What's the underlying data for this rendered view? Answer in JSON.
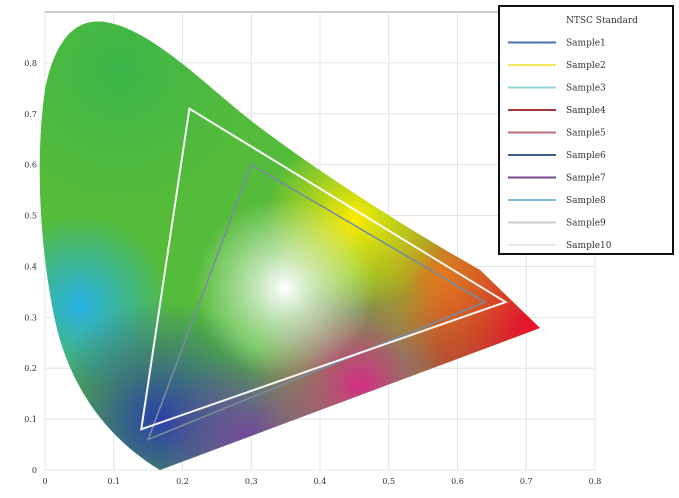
{
  "chart_data": {
    "type": "line",
    "title": "",
    "xlabel": "",
    "ylabel": "",
    "xlim": [
      0,
      0.8
    ],
    "ylim": [
      0,
      0.9
    ],
    "grid": true,
    "legend_position": "top-right",
    "x_ticks": [
      "0",
      "0.1",
      "0.2",
      "0.3",
      "0.4",
      "0.5",
      "0.6",
      "0.7",
      "0.8"
    ],
    "y_ticks": [
      "0",
      "0.1",
      "0.2",
      "0.3",
      "0.4",
      "0.5",
      "0.6",
      "0.7",
      "0.8"
    ],
    "background": "CIE 1931 chromaticity diagram",
    "series": [
      {
        "name": "NTSC Standard",
        "color": "#ffffff",
        "points": [
          [
            0.67,
            0.33
          ],
          [
            0.21,
            0.71
          ],
          [
            0.14,
            0.08
          ]
        ]
      },
      {
        "name": "Sample1",
        "color": "#4a6fb5",
        "points": [
          [
            0.64,
            0.33
          ],
          [
            0.3,
            0.6
          ],
          [
            0.15,
            0.06
          ]
        ]
      },
      {
        "name": "Sample2",
        "color": "#f2e85a",
        "points": [
          [
            0.64,
            0.33
          ],
          [
            0.3,
            0.6
          ],
          [
            0.15,
            0.06
          ]
        ]
      },
      {
        "name": "Sample3",
        "color": "#8fd4d6",
        "points": [
          [
            0.64,
            0.33
          ],
          [
            0.3,
            0.6
          ],
          [
            0.15,
            0.06
          ]
        ]
      },
      {
        "name": "Sample4",
        "color": "#a13a3a",
        "points": [
          [
            0.64,
            0.33
          ],
          [
            0.3,
            0.6
          ],
          [
            0.15,
            0.06
          ]
        ]
      },
      {
        "name": "Sample5",
        "color": "#c06e7a",
        "points": [
          [
            0.64,
            0.33
          ],
          [
            0.3,
            0.6
          ],
          [
            0.15,
            0.06
          ]
        ]
      },
      {
        "name": "Sample6",
        "color": "#3f5e8c",
        "points": [
          [
            0.64,
            0.33
          ],
          [
            0.3,
            0.6
          ],
          [
            0.15,
            0.06
          ]
        ]
      },
      {
        "name": "Sample7",
        "color": "#7a4a8a",
        "points": [
          [
            0.64,
            0.33
          ],
          [
            0.3,
            0.6
          ],
          [
            0.15,
            0.06
          ]
        ]
      },
      {
        "name": "Sample8",
        "color": "#7fb8e0",
        "points": [
          [
            0.64,
            0.33
          ],
          [
            0.3,
            0.6
          ],
          [
            0.15,
            0.06
          ]
        ]
      },
      {
        "name": "Sample9",
        "color": "#cccccc",
        "points": [
          [
            0.64,
            0.33
          ],
          [
            0.3,
            0.6
          ],
          [
            0.15,
            0.06
          ]
        ]
      },
      {
        "name": "Sample10",
        "color": "#e8e8e8",
        "points": [
          [
            0.64,
            0.33
          ],
          [
            0.3,
            0.6
          ],
          [
            0.15,
            0.06
          ]
        ]
      }
    ]
  }
}
